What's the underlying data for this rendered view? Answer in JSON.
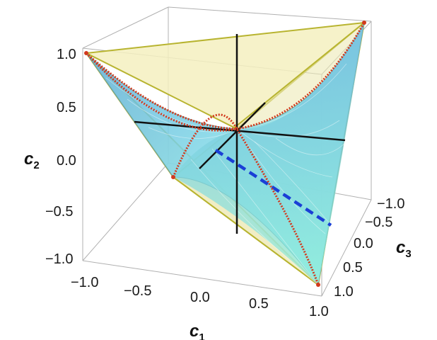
{
  "chart_data": {
    "type": "3d-surface",
    "title": "",
    "axes": {
      "x": {
        "label": "c",
        "label_sub": "1",
        "ticks": [
          "−1.0",
          "−0.5",
          "0.0",
          "0.5",
          "1.0"
        ],
        "range": [
          -1,
          1
        ]
      },
      "y": {
        "label": "c",
        "label_sub": "2",
        "ticks": [
          "1.0",
          "0.5",
          "0.0",
          "−0.5",
          "−1.0"
        ],
        "range": [
          -1,
          1
        ]
      },
      "z": {
        "label": "c",
        "label_sub": "3",
        "ticks": [
          "−1.0",
          "−0.5",
          "0.0",
          "0.5",
          "1.0"
        ],
        "range": [
          -1,
          1
        ]
      }
    },
    "tetrahedron_vertices": [
      {
        "c1": -1,
        "c2": 1,
        "c3": -1
      },
      {
        "c1": 1,
        "c2": 1,
        "c3": 1
      },
      {
        "c1": -1,
        "c2": -1,
        "c3": 1
      },
      {
        "c1": 1,
        "c2": -1,
        "c3": -1
      }
    ],
    "surface": {
      "description_color": "#7fe6e6",
      "face_color": "#f3efb8"
    },
    "curves": [
      {
        "style": "red-dotted",
        "color": "#d23a1e"
      },
      {
        "style": "blue-dashed",
        "color": "#1a3fd6"
      },
      {
        "style": "black-solid",
        "color": "#111111"
      }
    ],
    "box": true,
    "grid": false
  }
}
